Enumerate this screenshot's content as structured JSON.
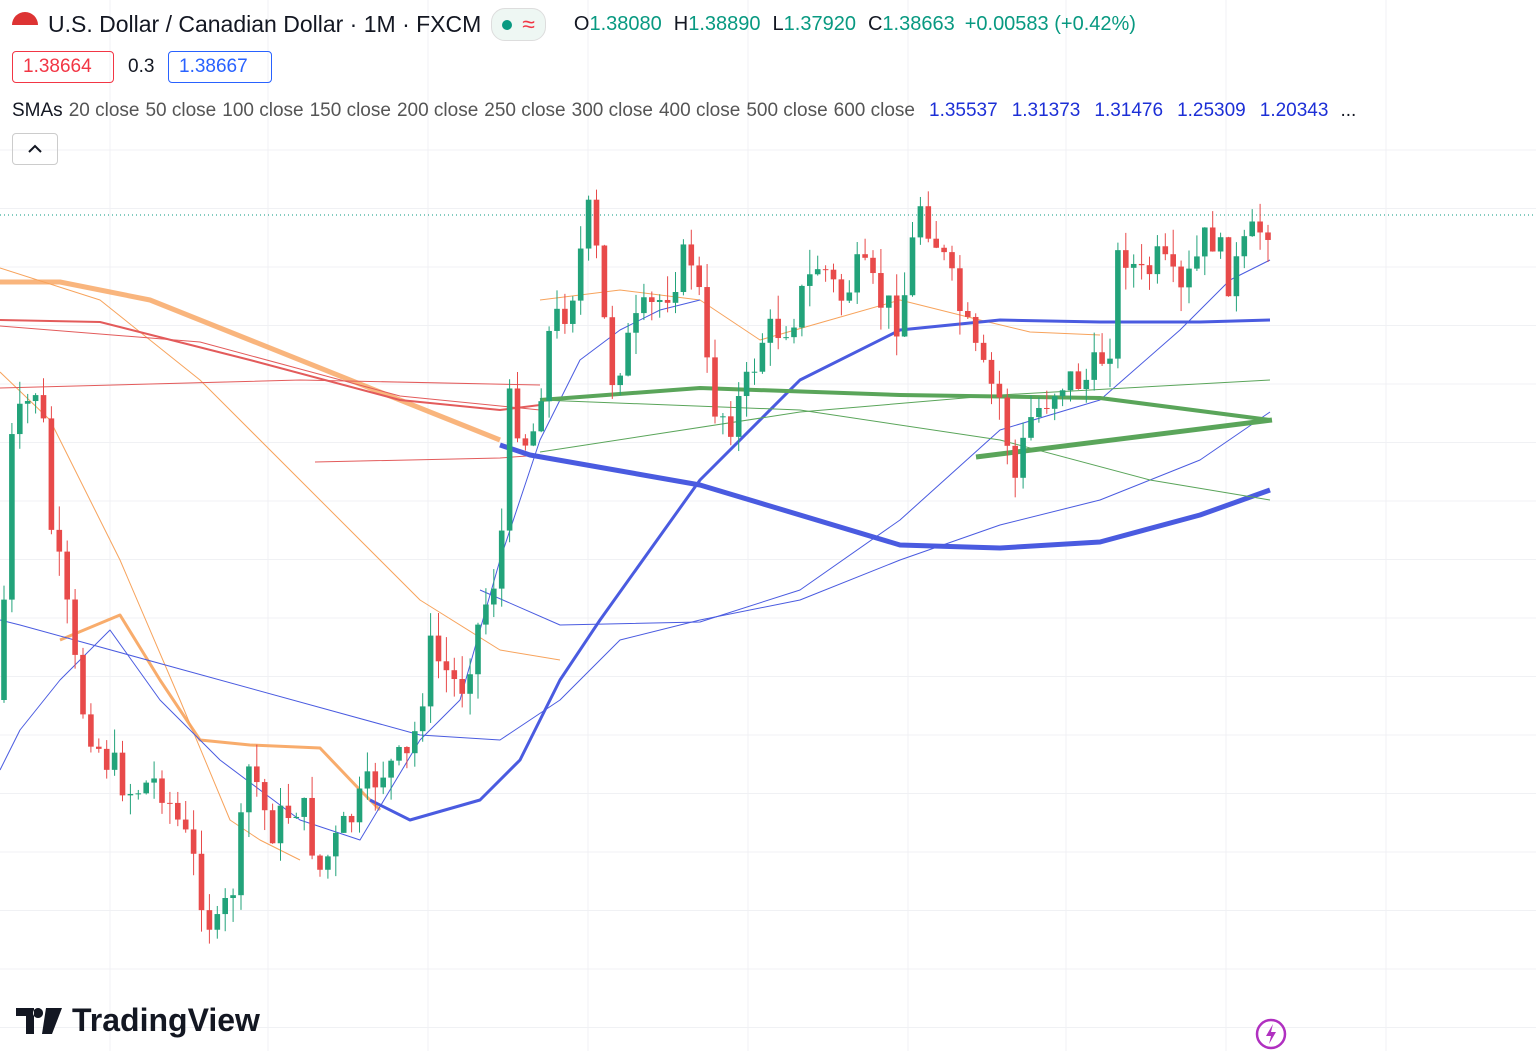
{
  "header": {
    "title": "U.S. Dollar / Canadian Dollar · 1M · FXCM",
    "ohlc": [
      {
        "label": "O",
        "value": "1.38080"
      },
      {
        "label": "H",
        "value": "1.38890"
      },
      {
        "label": "L",
        "value": "1.37920"
      },
      {
        "label": "C",
        "value": "1.38663"
      }
    ],
    "change": "+0.00583 (+0.42%)"
  },
  "quote": {
    "sell": "1.38664",
    "spread": "0.3",
    "buy": "1.38667"
  },
  "indicator": {
    "name": "SMAs",
    "params": [
      "20 close",
      "50 close",
      "100 close",
      "150 close",
      "200 close",
      "250 close",
      "300 close",
      "400 close",
      "500 close",
      "600 close"
    ],
    "values": [
      "1.35537",
      "1.31373",
      "1.31476",
      "1.25309",
      "1.20343"
    ],
    "more": "..."
  },
  "logo": "TradingView"
}
